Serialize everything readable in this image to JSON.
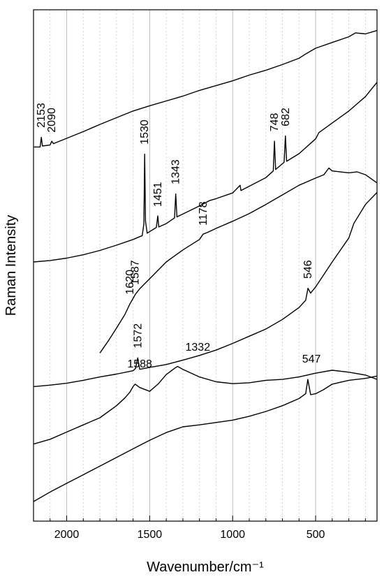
{
  "chart_data": {
    "type": "line",
    "xlabel": "Wavenumber/cm⁻¹",
    "ylabel": "Raman Intensity",
    "xlim": [
      2200,
      130
    ],
    "x_reversed": true,
    "x_ticks": [
      2000,
      1500,
      1000,
      500
    ],
    "x_minor_step": 100,
    "y_ticks": [],
    "grid": "vertical-major-solid-minor-dashed",
    "legend": "none",
    "ylim": [
      0,
      100
    ],
    "series": [
      {
        "trace": "spectrum-1",
        "x": [
          2200,
          2160,
          2153,
          2146,
          2100,
          2090,
          2080,
          2000,
          1900,
          1800,
          1700,
          1600,
          1500,
          1400,
          1300,
          1200,
          1100,
          1000,
          900,
          800,
          700,
          600,
          560,
          540,
          500,
          400,
          300,
          260,
          200,
          130
        ],
        "y": [
          74.0,
          74.0,
          76.0,
          74.2,
          74.4,
          75.2,
          74.7,
          75.8,
          77.2,
          78.7,
          80.1,
          81.5,
          82.6,
          83.6,
          84.6,
          85.8,
          86.8,
          87.8,
          89.0,
          90.0,
          91.2,
          92.5,
          93.4,
          93.8,
          94.6,
          95.8,
          97.0,
          97.8,
          97.6,
          98.3
        ]
      },
      {
        "trace": "spectrum-2",
        "x": [
          2200,
          2100,
          2000,
          1900,
          1800,
          1700,
          1600,
          1545,
          1535,
          1530,
          1525,
          1515,
          1460,
          1451,
          1445,
          1400,
          1350,
          1343,
          1336,
          1300,
          1200,
          1140,
          1100,
          1000,
          955,
          950,
          900,
          800,
          755,
          748,
          741,
          700,
          690,
          682,
          675,
          600,
          500,
          480,
          400,
          300,
          200,
          130
        ],
        "y": [
          50.0,
          50.3,
          50.8,
          51.5,
          52.4,
          53.5,
          54.7,
          55.5,
          58.0,
          72.5,
          58.5,
          56.0,
          57.2,
          59.6,
          57.3,
          58.0,
          59.2,
          64.2,
          59.4,
          60.0,
          61.7,
          62.8,
          63.2,
          64.4,
          66.0,
          64.9,
          65.8,
          67.6,
          69.0,
          75.2,
          69.3,
          70.5,
          70.8,
          76.3,
          71.0,
          72.6,
          75.7,
          77.0,
          79.0,
          81.5,
          84.5,
          87.5
        ]
      },
      {
        "trace": "spectrum-3",
        "x": [
          1800,
          1750,
          1700,
          1650,
          1620,
          1600,
          1587,
          1560,
          1500,
          1400,
          1300,
          1200,
          1178,
          1150,
          1100,
          1000,
          900,
          800,
          700,
          600,
          500,
          450,
          420,
          400,
          300,
          250,
          200,
          130
        ],
        "y": [
          31.0,
          33.5,
          36.2,
          39.0,
          41.2,
          42.4,
          43.2,
          44.4,
          46.5,
          50.0,
          52.5,
          54.7,
          55.8,
          56.2,
          57.0,
          58.5,
          60.1,
          62.0,
          64.0,
          66.0,
          67.5,
          68.2,
          69.6,
          69.0,
          68.6,
          68.8,
          68.2,
          66.5
        ]
      },
      {
        "trace": "spectrum-4",
        "x": [
          2200,
          2100,
          2000,
          1900,
          1800,
          1700,
          1600,
          1585,
          1572,
          1560,
          1500,
          1400,
          1300,
          1200,
          1100,
          1000,
          900,
          800,
          700,
          600,
          560,
          546,
          530,
          500,
          400,
          300,
          270,
          200,
          130
        ],
        "y": [
          24.0,
          24.3,
          24.7,
          25.3,
          26.0,
          26.6,
          27.3,
          27.8,
          30.0,
          27.6,
          28.0,
          28.6,
          29.5,
          30.5,
          31.6,
          33.0,
          34.5,
          36.0,
          38.0,
          40.5,
          42.0,
          44.5,
          43.5,
          44.8,
          50.0,
          55.0,
          58.0,
          62.0,
          64.5
        ]
      },
      {
        "trace": "spectrum-5",
        "x": [
          2200,
          2100,
          2000,
          1900,
          1800,
          1700,
          1650,
          1620,
          1600,
          1588,
          1560,
          1500,
          1450,
          1400,
          1350,
          1332,
          1300,
          1200,
          1100,
          1000,
          900,
          800,
          700,
          600,
          500,
          400,
          300,
          200,
          130
        ],
        "y": [
          12.0,
          13.0,
          14.5,
          16.0,
          17.5,
          20.0,
          21.6,
          22.8,
          24.0,
          24.5,
          23.8,
          23.0,
          24.5,
          26.5,
          27.8,
          28.2,
          27.6,
          26.0,
          25.0,
          24.6,
          24.8,
          25.3,
          25.5,
          26.0,
          26.8,
          27.4,
          27.0,
          26.4,
          25.5
        ]
      },
      {
        "trace": "spectrum-6",
        "x": [
          2200,
          2100,
          2000,
          1900,
          1800,
          1700,
          1600,
          1500,
          1400,
          1300,
          1200,
          1100,
          1000,
          900,
          800,
          700,
          600,
          560,
          547,
          530,
          500,
          450,
          400,
          300,
          200,
          130
        ],
        "y": [
          0.0,
          2.0,
          3.8,
          5.6,
          7.4,
          9.2,
          11.0,
          12.8,
          14.4,
          15.6,
          16.0,
          16.5,
          17.0,
          17.8,
          18.8,
          20.0,
          21.5,
          22.5,
          25.5,
          22.3,
          22.5,
          23.4,
          24.5,
          25.3,
          25.7,
          26.2
        ]
      }
    ],
    "peak_labels": [
      {
        "text": "2153",
        "x": 2153,
        "y": 78.0
      },
      {
        "text": "2090",
        "x": 2090,
        "y": 77.0
      },
      {
        "text": "1530",
        "x": 1530,
        "y": 74.5
      },
      {
        "text": "1451",
        "x": 1451,
        "y": 61.5
      },
      {
        "text": "1343",
        "x": 1343,
        "y": 66.2
      },
      {
        "text": "748",
        "x": 748,
        "y": 77.2
      },
      {
        "text": "682",
        "x": 682,
        "y": 78.3
      },
      {
        "text": "1178",
        "x": 1178,
        "y": 57.6
      },
      {
        "text": "1620",
        "x": 1620,
        "y": 43.2
      },
      {
        "text": "1587",
        "x": 1587,
        "y": 45.2
      },
      {
        "text": "546",
        "x": 546,
        "y": 46.5
      },
      {
        "text": "1572",
        "x": 1572,
        "y": 32.0
      },
      {
        "text": "1588",
        "x": 1560,
        "y": 28.0,
        "horizontal": true
      },
      {
        "text": "1332",
        "x": 1210,
        "y": 31.5,
        "horizontal": true
      },
      {
        "text": "547",
        "x": 525,
        "y": 29.0,
        "horizontal": true
      }
    ]
  }
}
